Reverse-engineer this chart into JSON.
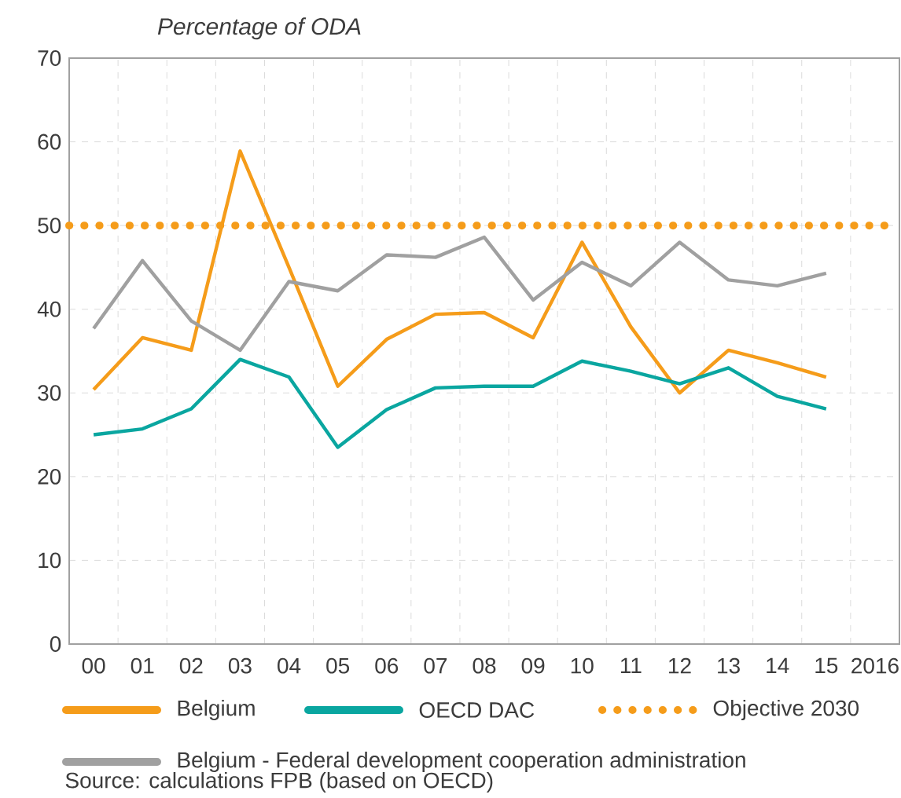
{
  "chart_data": {
    "type": "line",
    "subtitle": "Percentage of ODA",
    "categories": [
      "00",
      "01",
      "02",
      "03",
      "04",
      "05",
      "06",
      "07",
      "08",
      "09",
      "10",
      "11",
      "12",
      "13",
      "14",
      "15",
      "2016"
    ],
    "series": [
      {
        "name": "Belgium",
        "color": "#f59c1a",
        "values": [
          30.4,
          36.6,
          35.1,
          58.9,
          45.0,
          30.8,
          36.4,
          39.4,
          39.6,
          36.6,
          48.0,
          37.9,
          30.0,
          35.1,
          33.6,
          31.9,
          null
        ]
      },
      {
        "name": "OECD DAC",
        "color": "#0aa6a0",
        "values": [
          25.0,
          25.7,
          28.1,
          34.0,
          31.9,
          23.5,
          28.0,
          30.6,
          30.8,
          30.8,
          33.8,
          32.6,
          31.1,
          33.0,
          29.6,
          28.1,
          null
        ]
      },
      {
        "name": "Belgium - Federal development cooperation administration",
        "color": "#a0a0a0",
        "values": [
          37.7,
          45.8,
          38.6,
          35.1,
          43.3,
          42.2,
          46.5,
          46.2,
          48.6,
          41.1,
          45.6,
          42.8,
          48.0,
          43.5,
          42.8,
          44.3,
          null
        ]
      }
    ],
    "ref_lines": [
      {
        "axis": "y",
        "value": 50,
        "label": "Objective 2030",
        "color": "#f59c1a",
        "line_style": "dotted"
      }
    ],
    "ylim": [
      0,
      70
    ],
    "yticks": [
      0,
      10,
      20,
      30,
      40,
      50,
      60,
      70
    ],
    "grid": true,
    "legend": "bottom",
    "line_style": "solid",
    "marker": "none",
    "annotations": [
      "Source: calculations FPB (based on OECD)"
    ]
  }
}
